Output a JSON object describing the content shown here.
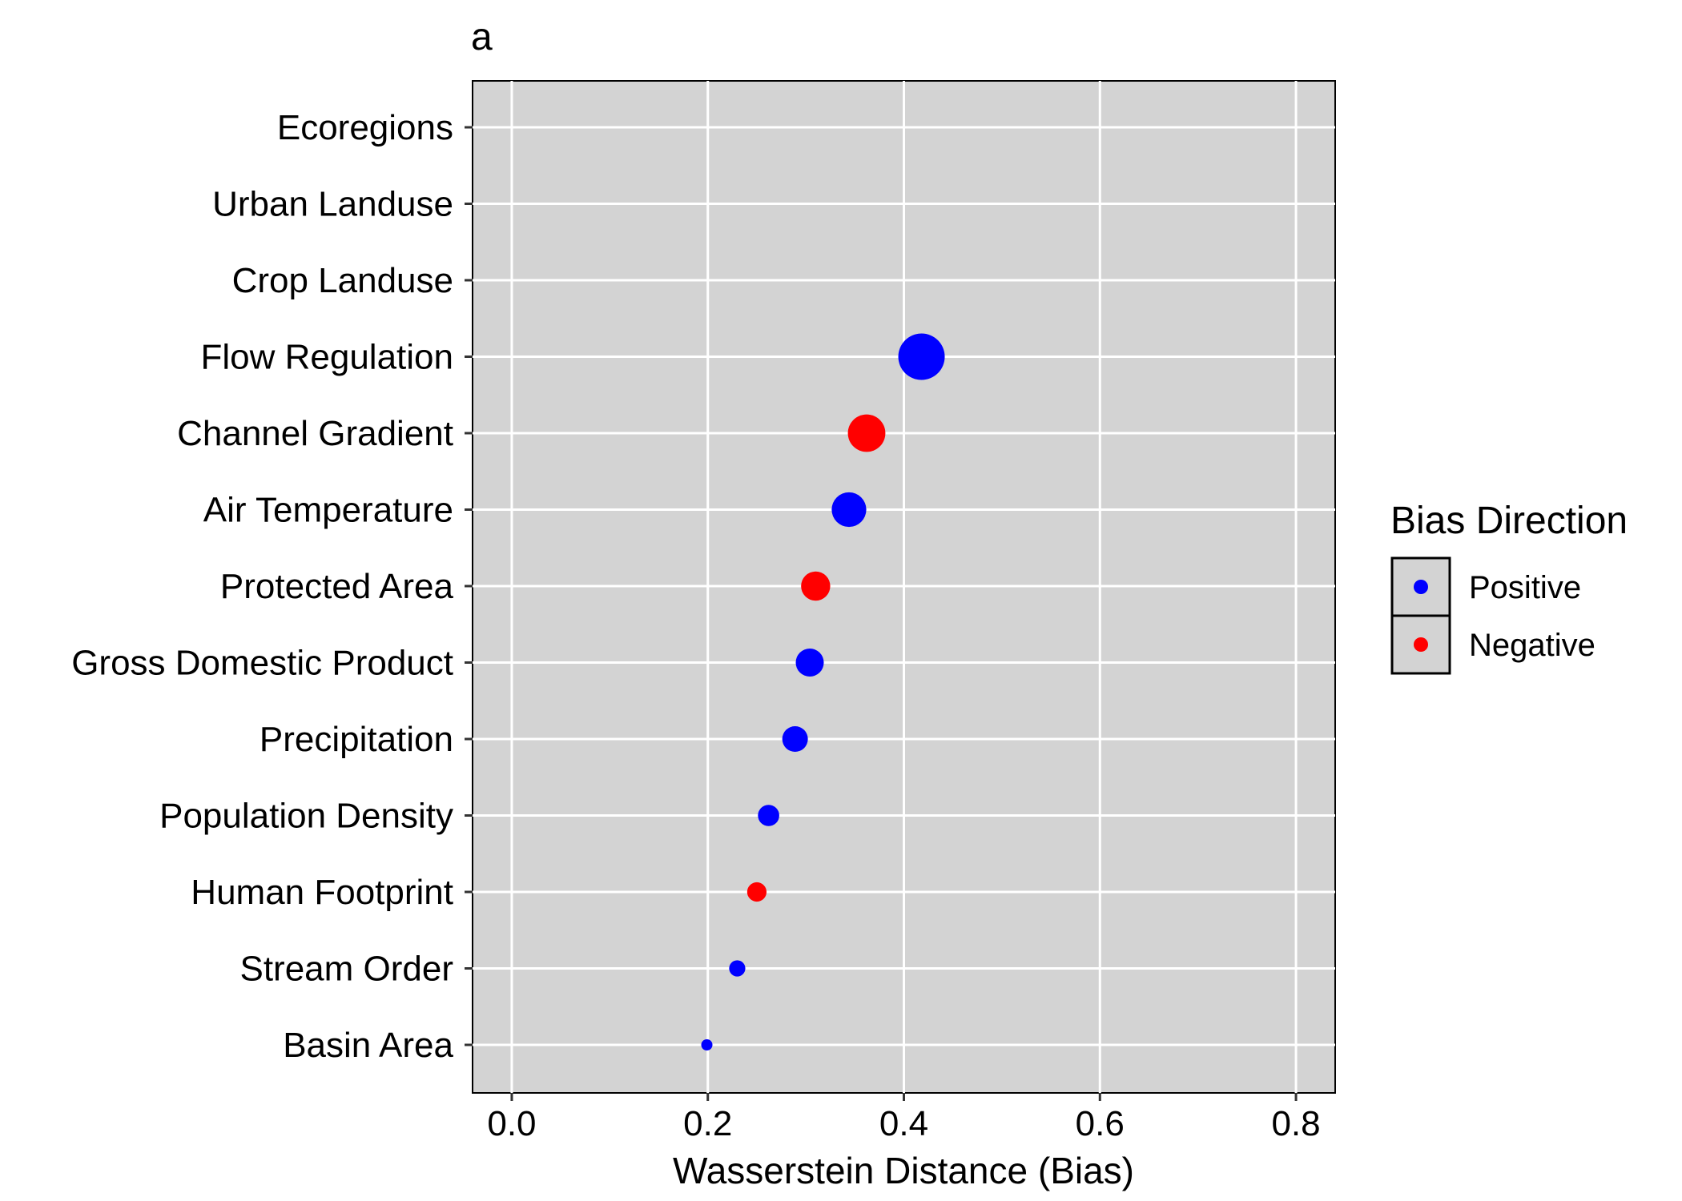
{
  "chart_data": {
    "type": "scatter",
    "panel_label": "a",
    "title": "",
    "xlabel": "Wasserstein Distance (Bias)",
    "ylabel": "",
    "xlim": [
      -0.04,
      0.84
    ],
    "xticks": [
      0.0,
      0.2,
      0.4,
      0.6,
      0.8
    ],
    "xtick_labels": [
      "0.0",
      "0.2",
      "0.4",
      "0.6",
      "0.8"
    ],
    "grid": true,
    "panel_background": "#d3d3d3",
    "categories": [
      "Ecoregions",
      "Urban Landuse",
      "Crop Landuse",
      "Flow Regulation",
      "Channel Gradient",
      "Air Temperature",
      "Protected Area",
      "Gross Domestic Product",
      "Precipitation",
      "Population Density",
      "Human Footprint",
      "Stream Order",
      "Basin Area"
    ],
    "points": [
      {
        "category": "Ecoregions",
        "x": null,
        "direction": "Positive"
      },
      {
        "category": "Urban Landuse",
        "x": null,
        "direction": "Positive"
      },
      {
        "category": "Crop Landuse",
        "x": null,
        "direction": "Positive"
      },
      {
        "category": "Flow Regulation",
        "x": 0.418,
        "direction": "Positive"
      },
      {
        "category": "Channel Gradient",
        "x": 0.362,
        "direction": "Negative"
      },
      {
        "category": "Air Temperature",
        "x": 0.344,
        "direction": "Positive"
      },
      {
        "category": "Protected Area",
        "x": 0.31,
        "direction": "Negative"
      },
      {
        "category": "Gross Domestic Product",
        "x": 0.304,
        "direction": "Positive"
      },
      {
        "category": "Precipitation",
        "x": 0.289,
        "direction": "Positive"
      },
      {
        "category": "Population Density",
        "x": 0.262,
        "direction": "Positive"
      },
      {
        "category": "Human Footprint",
        "x": 0.25,
        "direction": "Negative"
      },
      {
        "category": "Stream Order",
        "x": 0.23,
        "direction": "Positive"
      },
      {
        "category": "Basin Area",
        "x": 0.199,
        "direction": "Positive"
      }
    ],
    "legend": {
      "title": "Bias Direction",
      "placement": "right",
      "entries": [
        {
          "label": "Positive",
          "color": "#0000ff"
        },
        {
          "label": "Negative",
          "color": "#ff0000"
        }
      ]
    },
    "colors": {
      "Positive": "#0000ff",
      "Negative": "#ff0000"
    }
  }
}
